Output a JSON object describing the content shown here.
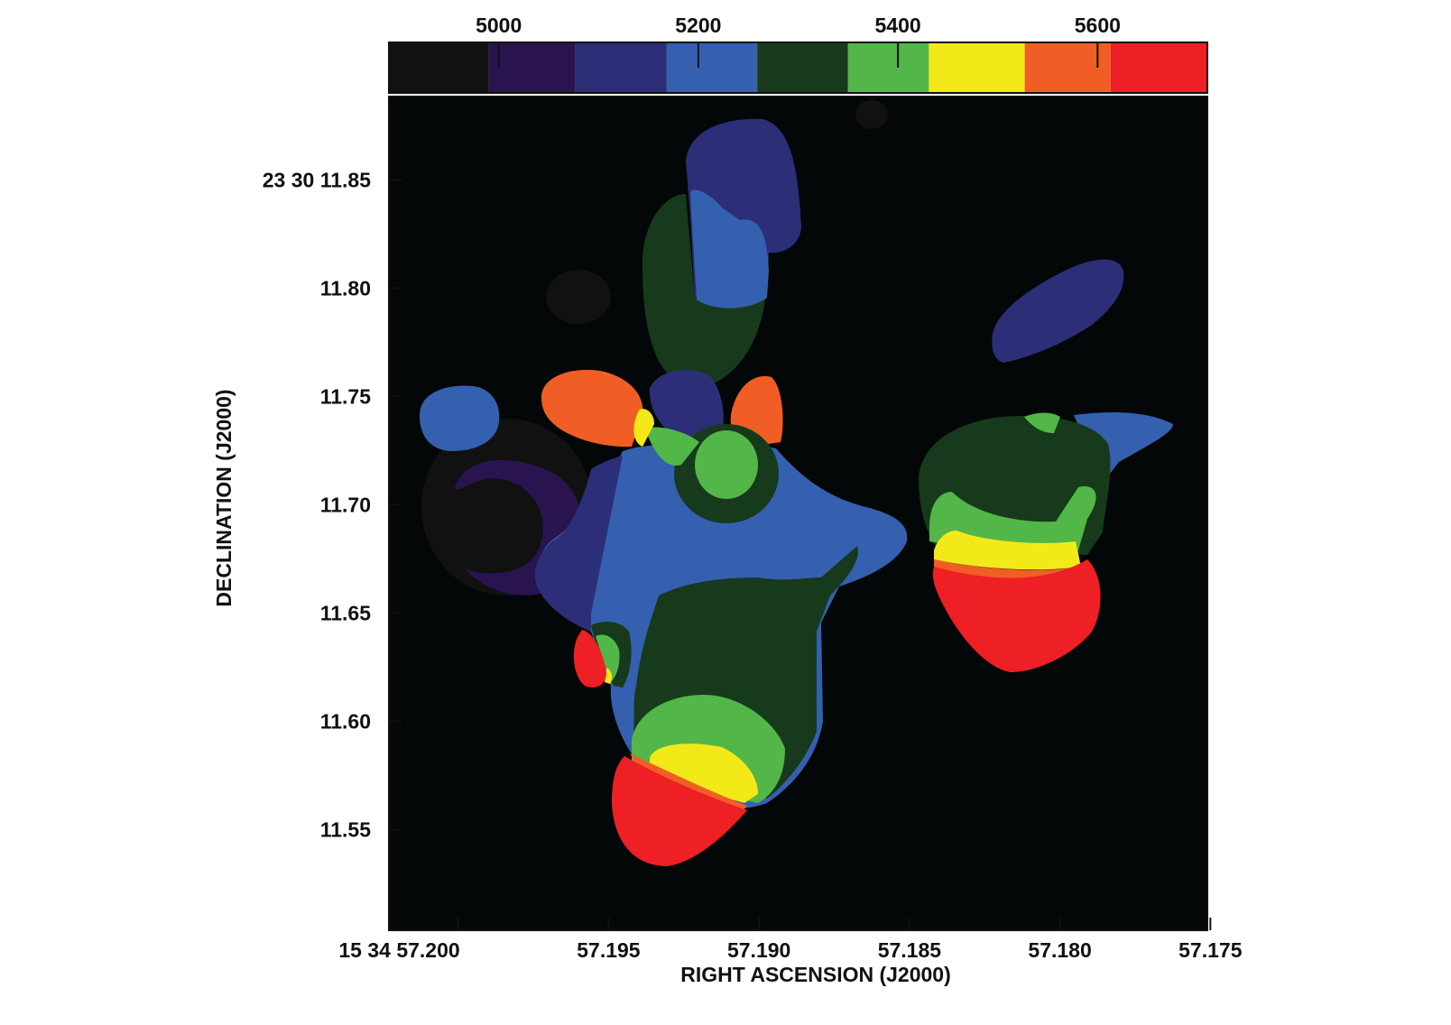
{
  "chart_data": {
    "type": "heatmap",
    "xlabel": "RIGHT ASCENSION (J2000)",
    "ylabel": "DECLINATION (J2000)",
    "x_ticks": [
      {
        "value": 57.2,
        "label": "15 34 57.200"
      },
      {
        "value": 57.195,
        "label": "57.195"
      },
      {
        "value": 57.19,
        "label": "57.190"
      },
      {
        "value": 57.185,
        "label": "57.185"
      },
      {
        "value": 57.18,
        "label": "57.180"
      },
      {
        "value": 57.175,
        "label": "57.175"
      }
    ],
    "y_ticks": [
      {
        "value": 11.85,
        "label": "23 30 11.85"
      },
      {
        "value": 11.8,
        "label": "11.80"
      },
      {
        "value": 11.75,
        "label": "11.75"
      },
      {
        "value": 11.7,
        "label": "11.70"
      },
      {
        "value": 11.65,
        "label": "11.65"
      },
      {
        "value": 11.6,
        "label": "11.60"
      },
      {
        "value": 11.55,
        "label": "11.55"
      }
    ],
    "xlim": [
      57.2023,
      57.1751
    ],
    "ylim": [
      11.5035,
      11.8885
    ],
    "x_reversed": true,
    "colorbar": {
      "ticks": [
        {
          "value": 5000,
          "label": "5000"
        },
        {
          "value": 5200,
          "label": "5200"
        },
        {
          "value": 5400,
          "label": "5400"
        },
        {
          "value": 5600,
          "label": "5600"
        }
      ],
      "range": [
        4890,
        5710
      ],
      "levels": [
        {
          "from": 4890,
          "to": 4990,
          "color": "#111111"
        },
        {
          "from": 4990,
          "to": 5077,
          "color": "#2a1450"
        },
        {
          "from": 5077,
          "to": 5168,
          "color": "#2c2e78"
        },
        {
          "from": 5168,
          "to": 5259,
          "color": "#3560b0"
        },
        {
          "from": 5259,
          "to": 5350,
          "color": "#173a1c"
        },
        {
          "from": 5350,
          "to": 5431,
          "color": "#52b748"
        },
        {
          "from": 5431,
          "to": 5527,
          "color": "#f3e919"
        },
        {
          "from": 5527,
          "to": 5613,
          "color": "#f15e25"
        },
        {
          "from": 5613,
          "to": 5710,
          "color": "#ee1f25"
        }
      ]
    },
    "background_color": "#040707"
  }
}
